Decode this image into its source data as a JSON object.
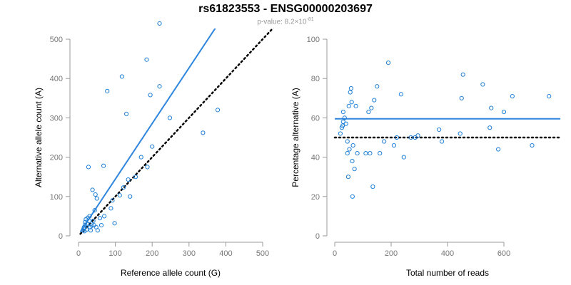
{
  "title": "rs61823553 - ENSG00000203697",
  "subtitle": {
    "prefix": "p-value: 8.2×10",
    "exponent": "-81"
  },
  "colors": {
    "points": "#1f7fd6",
    "fit_line": "#2e86de",
    "reference_line": "#000000",
    "axis": "#999999",
    "tick_text": "#777777"
  },
  "chart_data": [
    {
      "type": "scatter",
      "xlabel": "Reference allele count (G)",
      "ylabel": "Alternative allele count (A)",
      "xlim": [
        0,
        500
      ],
      "ylim": [
        0,
        500
      ],
      "xticks": [
        0,
        100,
        200,
        300,
        400,
        500
      ],
      "yticks": [
        0,
        100,
        200,
        300,
        400,
        500
      ],
      "grid": false,
      "points": [
        [
          12,
          14
        ],
        [
          14,
          18
        ],
        [
          15,
          22
        ],
        [
          16,
          12
        ],
        [
          18,
          28
        ],
        [
          18,
          35
        ],
        [
          20,
          42
        ],
        [
          22,
          16
        ],
        [
          24,
          30
        ],
        [
          25,
          46
        ],
        [
          27,
          175
        ],
        [
          29,
          38
        ],
        [
          30,
          50
        ],
        [
          32,
          22
        ],
        [
          33,
          14
        ],
        [
          36,
          26
        ],
        [
          38,
          117
        ],
        [
          40,
          38
        ],
        [
          42,
          27
        ],
        [
          44,
          65
        ],
        [
          46,
          105
        ],
        [
          48,
          22
        ],
        [
          50,
          95
        ],
        [
          52,
          14
        ],
        [
          58,
          45
        ],
        [
          62,
          27
        ],
        [
          68,
          178
        ],
        [
          70,
          50
        ],
        [
          78,
          368
        ],
        [
          88,
          70
        ],
        [
          92,
          90
        ],
        [
          98,
          32
        ],
        [
          112,
          103
        ],
        [
          118,
          405
        ],
        [
          122,
          123
        ],
        [
          130,
          310
        ],
        [
          135,
          143
        ],
        [
          140,
          100
        ],
        [
          155,
          150
        ],
        [
          170,
          200
        ],
        [
          185,
          448
        ],
        [
          187,
          175
        ],
        [
          195,
          358
        ],
        [
          200,
          227
        ],
        [
          220,
          540
        ],
        [
          220,
          380
        ],
        [
          248,
          300
        ],
        [
          338,
          262
        ],
        [
          378,
          320
        ]
      ],
      "lines": [
        {
          "role": "fit",
          "style": "solid",
          "from": [
            5,
            10
          ],
          "to": [
            380,
            540
          ]
        },
        {
          "role": "reference",
          "style": "dotted",
          "from": [
            5,
            5
          ],
          "to": [
            540,
            540
          ]
        }
      ]
    },
    {
      "type": "scatter",
      "xlabel": "Total number of reads",
      "ylabel": "Percentage alternative (A)",
      "xlim": [
        0,
        800
      ],
      "ylim": [
        0,
        100
      ],
      "xticks": [
        0,
        200,
        400,
        600
      ],
      "yticks": [
        0,
        20,
        40,
        60,
        80,
        100
      ],
      "grid": false,
      "points": [
        [
          20,
          52
        ],
        [
          25,
          55
        ],
        [
          28,
          56
        ],
        [
          30,
          63
        ],
        [
          30,
          58
        ],
        [
          35,
          60
        ],
        [
          40,
          57
        ],
        [
          45,
          48
        ],
        [
          45,
          42
        ],
        [
          48,
          30
        ],
        [
          50,
          66
        ],
        [
          52,
          44
        ],
        [
          55,
          73
        ],
        [
          58,
          75
        ],
        [
          60,
          68
        ],
        [
          62,
          38
        ],
        [
          63,
          20
        ],
        [
          65,
          46
        ],
        [
          70,
          34
        ],
        [
          75,
          66
        ],
        [
          80,
          42
        ],
        [
          110,
          42
        ],
        [
          120,
          63
        ],
        [
          125,
          42
        ],
        [
          130,
          65
        ],
        [
          135,
          25
        ],
        [
          140,
          69
        ],
        [
          150,
          76
        ],
        [
          160,
          42
        ],
        [
          175,
          48
        ],
        [
          190,
          88
        ],
        [
          210,
          46
        ],
        [
          220,
          50
        ],
        [
          235,
          72
        ],
        [
          245,
          40
        ],
        [
          270,
          50
        ],
        [
          285,
          50
        ],
        [
          295,
          51
        ],
        [
          370,
          54
        ],
        [
          380,
          48
        ],
        [
          445,
          52
        ],
        [
          450,
          70
        ],
        [
          455,
          82
        ],
        [
          525,
          77
        ],
        [
          550,
          55
        ],
        [
          555,
          65
        ],
        [
          580,
          44
        ],
        [
          600,
          63
        ],
        [
          630,
          71
        ],
        [
          700,
          46
        ],
        [
          760,
          71
        ]
      ],
      "lines": [
        {
          "role": "fit",
          "style": "solid",
          "from": [
            0,
            59.5
          ],
          "to": [
            800,
            59.5
          ]
        },
        {
          "role": "reference",
          "style": "dotted",
          "from": [
            0,
            50
          ],
          "to": [
            800,
            50
          ]
        }
      ]
    }
  ]
}
